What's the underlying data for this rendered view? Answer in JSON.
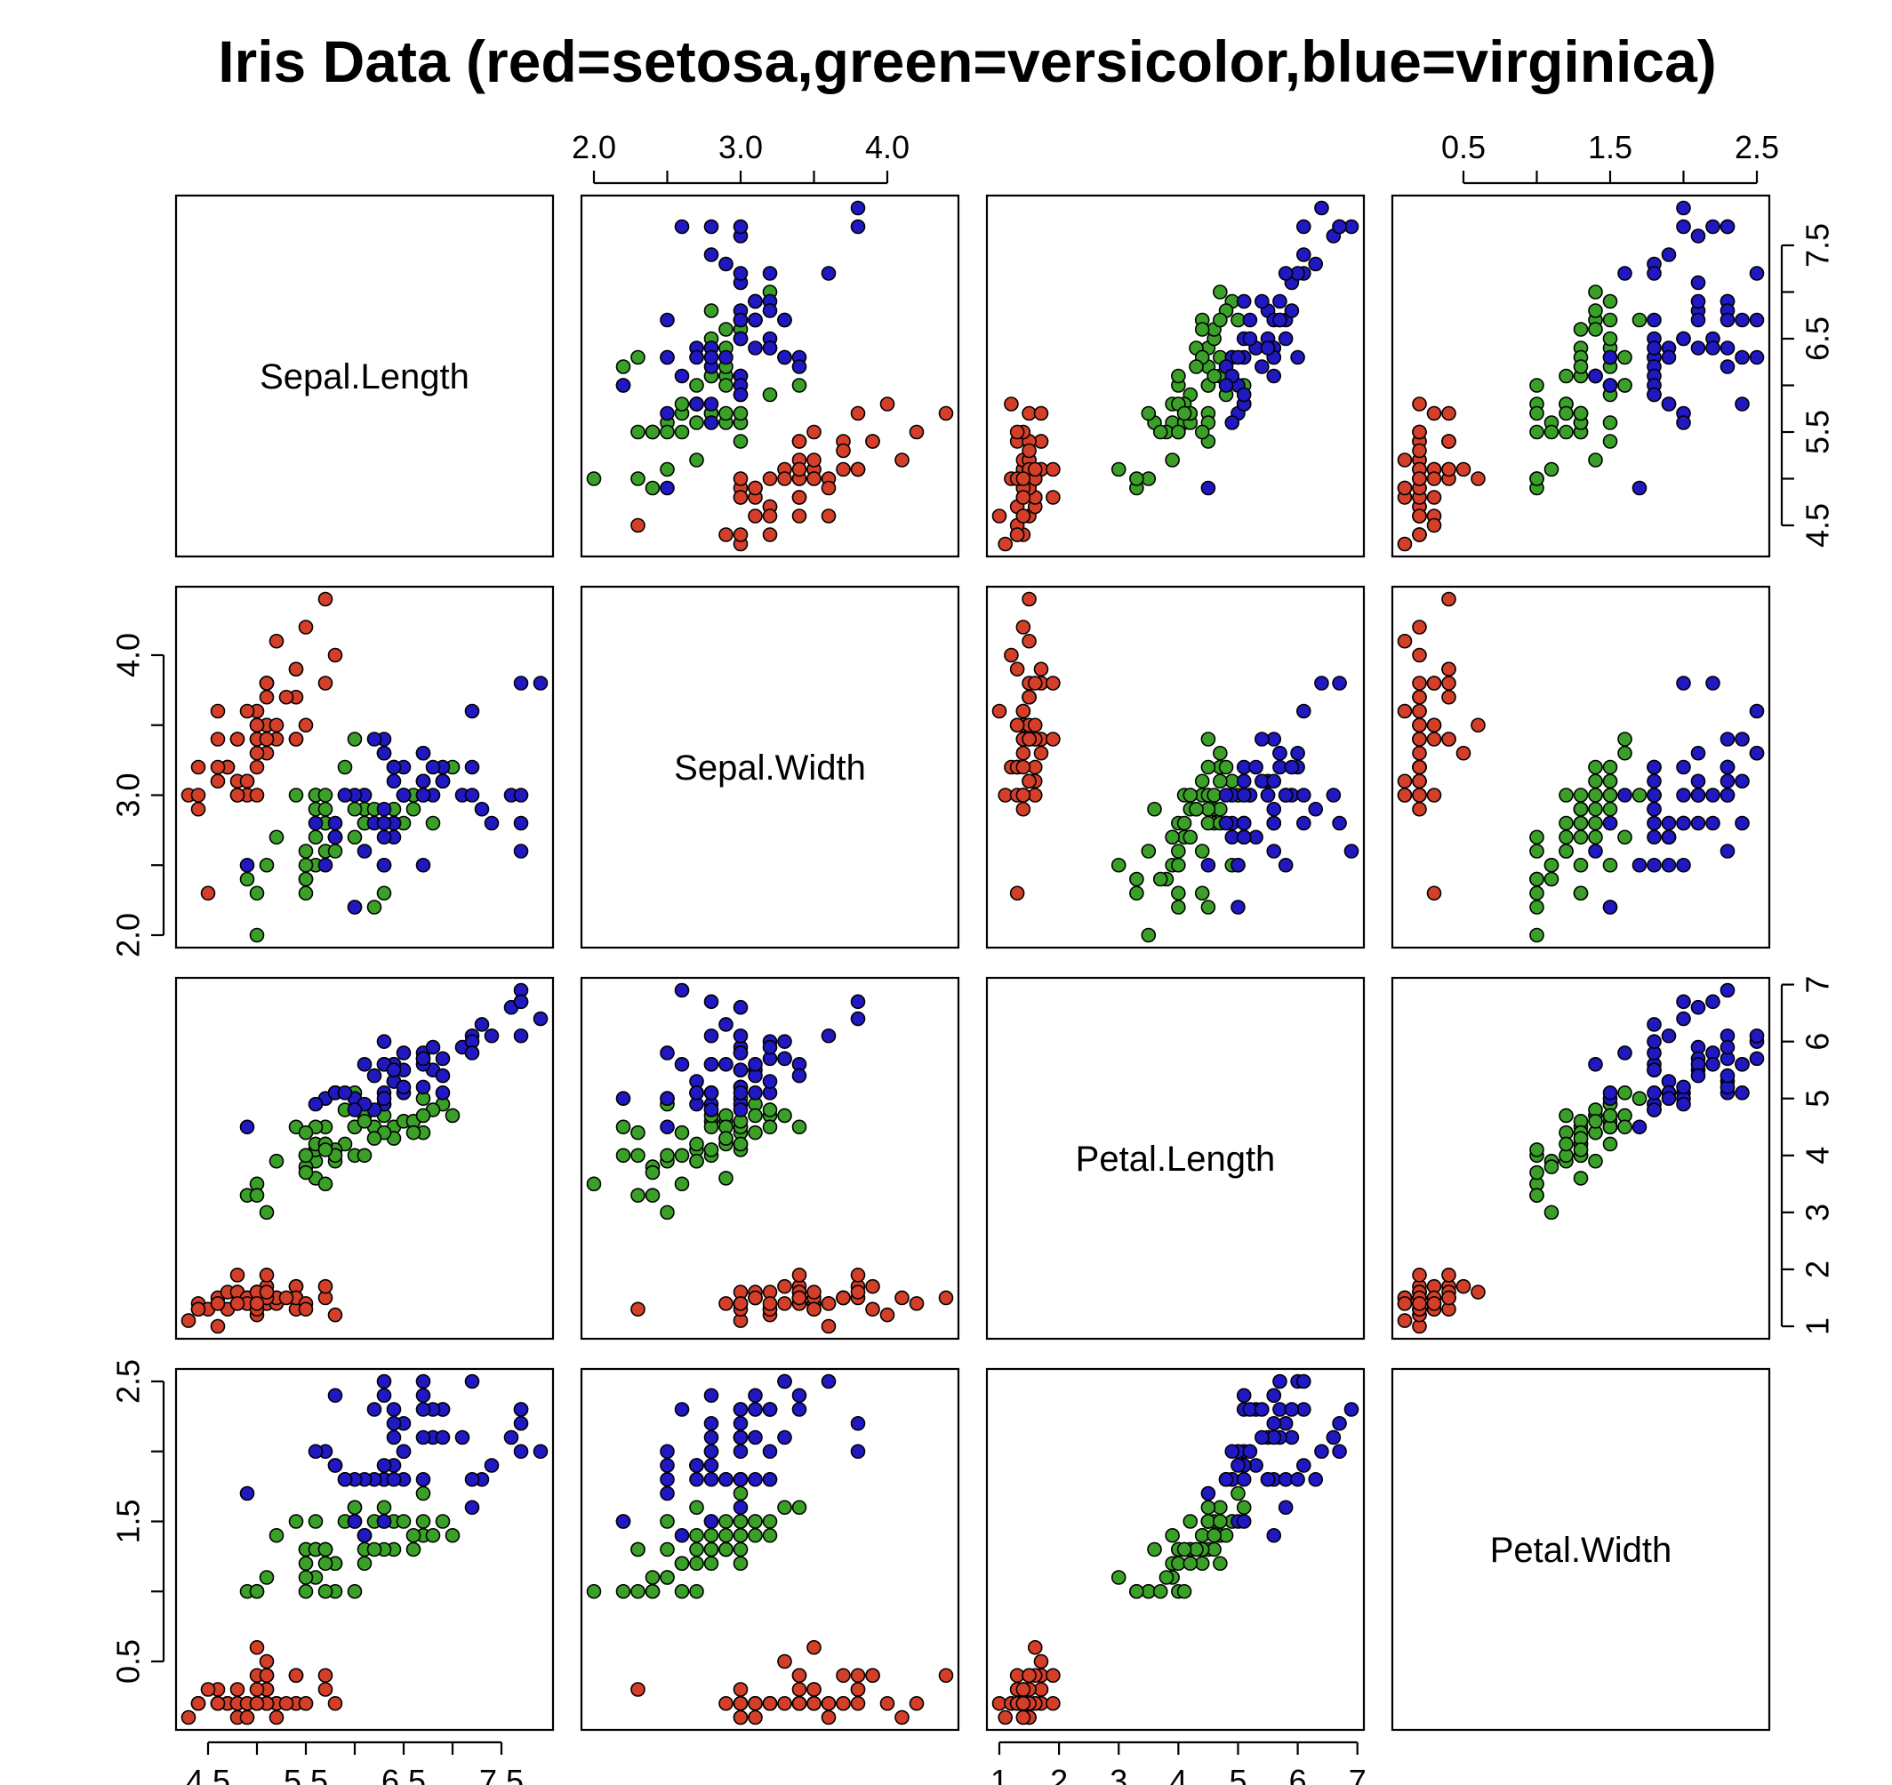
{
  "chart_data": {
    "type": "scatter",
    "title": "Iris Data (red=setosa,green=versicolor,blue=virginica)",
    "variables": [
      "Sepal.Length",
      "Sepal.Width",
      "Petal.Length",
      "Petal.Width"
    ],
    "ranges": [
      [
        4.3,
        7.9
      ],
      [
        2.0,
        4.4
      ],
      [
        1.0,
        6.9
      ],
      [
        0.1,
        2.5
      ]
    ],
    "ticks": [
      [
        4.5,
        5.0,
        5.5,
        6.0,
        6.5,
        7.0,
        7.5
      ],
      [
        2.0,
        2.5,
        3.0,
        3.5,
        4.0
      ],
      [
        1,
        2,
        3,
        4,
        5,
        6,
        7
      ],
      [
        0.5,
        1.0,
        1.5,
        2.0,
        2.5
      ]
    ],
    "tick_labels": [
      [
        "4.5",
        "",
        "5.5",
        "",
        "6.5",
        "",
        "7.5"
      ],
      [
        "2.0",
        "",
        "3.0",
        "",
        "4.0"
      ],
      [
        "1",
        "2",
        "3",
        "4",
        "5",
        "6",
        "7"
      ],
      [
        "0.5",
        "",
        "1.5",
        "",
        "2.5"
      ]
    ],
    "series_colors": {
      "setosa": "#d43f2a",
      "versicolor": "#3aa028",
      "virginica": "#2018c0"
    },
    "series": [
      {
        "key": "setosa",
        "points": [
          [
            5.1,
            3.5,
            1.4,
            0.2
          ],
          [
            4.9,
            3.0,
            1.4,
            0.2
          ],
          [
            4.7,
            3.2,
            1.3,
            0.2
          ],
          [
            4.6,
            3.1,
            1.5,
            0.2
          ],
          [
            5.0,
            3.6,
            1.4,
            0.2
          ],
          [
            5.4,
            3.9,
            1.7,
            0.4
          ],
          [
            4.6,
            3.4,
            1.4,
            0.3
          ],
          [
            5.0,
            3.4,
            1.5,
            0.2
          ],
          [
            4.4,
            2.9,
            1.4,
            0.2
          ],
          [
            4.9,
            3.1,
            1.5,
            0.1
          ],
          [
            5.4,
            3.7,
            1.5,
            0.2
          ],
          [
            4.8,
            3.4,
            1.6,
            0.2
          ],
          [
            4.8,
            3.0,
            1.4,
            0.1
          ],
          [
            4.3,
            3.0,
            1.1,
            0.1
          ],
          [
            5.8,
            4.0,
            1.2,
            0.2
          ],
          [
            5.7,
            4.4,
            1.5,
            0.4
          ],
          [
            5.4,
            3.9,
            1.3,
            0.4
          ],
          [
            5.1,
            3.5,
            1.4,
            0.3
          ],
          [
            5.7,
            3.8,
            1.7,
            0.3
          ],
          [
            5.1,
            3.8,
            1.5,
            0.3
          ],
          [
            5.4,
            3.4,
            1.7,
            0.2
          ],
          [
            5.1,
            3.7,
            1.5,
            0.4
          ],
          [
            4.6,
            3.6,
            1.0,
            0.2
          ],
          [
            5.1,
            3.3,
            1.7,
            0.5
          ],
          [
            4.8,
            3.4,
            1.9,
            0.2
          ],
          [
            5.0,
            3.0,
            1.6,
            0.2
          ],
          [
            5.0,
            3.4,
            1.6,
            0.4
          ],
          [
            5.2,
            3.5,
            1.5,
            0.2
          ],
          [
            5.2,
            3.4,
            1.4,
            0.2
          ],
          [
            4.7,
            3.2,
            1.6,
            0.2
          ],
          [
            4.8,
            3.1,
            1.6,
            0.2
          ],
          [
            5.4,
            3.4,
            1.5,
            0.4
          ],
          [
            5.2,
            4.1,
            1.5,
            0.1
          ],
          [
            5.5,
            4.2,
            1.4,
            0.2
          ],
          [
            4.9,
            3.1,
            1.5,
            0.2
          ],
          [
            5.0,
            3.2,
            1.2,
            0.2
          ],
          [
            5.5,
            3.5,
            1.3,
            0.2
          ],
          [
            4.9,
            3.6,
            1.4,
            0.1
          ],
          [
            4.4,
            3.0,
            1.3,
            0.2
          ],
          [
            5.1,
            3.4,
            1.5,
            0.2
          ],
          [
            5.0,
            3.5,
            1.3,
            0.3
          ],
          [
            4.5,
            2.3,
            1.3,
            0.3
          ],
          [
            4.4,
            3.2,
            1.3,
            0.2
          ],
          [
            5.0,
            3.5,
            1.6,
            0.6
          ],
          [
            5.1,
            3.8,
            1.9,
            0.4
          ],
          [
            4.8,
            3.0,
            1.4,
            0.3
          ],
          [
            5.1,
            3.8,
            1.6,
            0.2
          ],
          [
            4.6,
            3.2,
            1.4,
            0.2
          ],
          [
            5.3,
            3.7,
            1.5,
            0.2
          ],
          [
            5.0,
            3.3,
            1.4,
            0.2
          ]
        ]
      },
      {
        "key": "versicolor",
        "points": [
          [
            7.0,
            3.2,
            4.7,
            1.4
          ],
          [
            6.4,
            3.2,
            4.5,
            1.5
          ],
          [
            6.9,
            3.1,
            4.9,
            1.5
          ],
          [
            5.5,
            2.3,
            4.0,
            1.3
          ],
          [
            6.5,
            2.8,
            4.6,
            1.5
          ],
          [
            5.7,
            2.8,
            4.5,
            1.3
          ],
          [
            6.3,
            3.3,
            4.7,
            1.6
          ],
          [
            4.9,
            2.4,
            3.3,
            1.0
          ],
          [
            6.6,
            2.9,
            4.6,
            1.3
          ],
          [
            5.2,
            2.7,
            3.9,
            1.4
          ],
          [
            5.0,
            2.0,
            3.5,
            1.0
          ],
          [
            5.9,
            3.0,
            4.2,
            1.5
          ],
          [
            6.0,
            2.2,
            4.0,
            1.0
          ],
          [
            6.1,
            2.9,
            4.7,
            1.4
          ],
          [
            5.6,
            2.9,
            3.6,
            1.3
          ],
          [
            6.7,
            3.1,
            4.4,
            1.4
          ],
          [
            5.6,
            3.0,
            4.5,
            1.5
          ],
          [
            5.8,
            2.7,
            4.1,
            1.0
          ],
          [
            6.2,
            2.2,
            4.5,
            1.5
          ],
          [
            5.6,
            2.5,
            3.9,
            1.1
          ],
          [
            5.9,
            3.2,
            4.8,
            1.8
          ],
          [
            6.1,
            2.8,
            4.0,
            1.3
          ],
          [
            6.3,
            2.5,
            4.9,
            1.5
          ],
          [
            6.1,
            2.8,
            4.7,
            1.2
          ],
          [
            6.4,
            2.9,
            4.3,
            1.3
          ],
          [
            6.6,
            3.0,
            4.4,
            1.4
          ],
          [
            6.8,
            2.8,
            4.8,
            1.4
          ],
          [
            6.7,
            3.0,
            5.0,
            1.7
          ],
          [
            6.0,
            2.9,
            4.5,
            1.5
          ],
          [
            5.7,
            2.6,
            3.5,
            1.0
          ],
          [
            5.5,
            2.4,
            3.8,
            1.1
          ],
          [
            5.5,
            2.4,
            3.7,
            1.0
          ],
          [
            5.8,
            2.7,
            3.9,
            1.2
          ],
          [
            6.0,
            2.7,
            5.1,
            1.6
          ],
          [
            5.4,
            3.0,
            4.5,
            1.5
          ],
          [
            6.0,
            3.4,
            4.5,
            1.6
          ],
          [
            6.7,
            3.1,
            4.7,
            1.5
          ],
          [
            6.3,
            2.3,
            4.4,
            1.3
          ],
          [
            5.6,
            3.0,
            4.1,
            1.3
          ],
          [
            5.5,
            2.5,
            4.0,
            1.3
          ],
          [
            5.5,
            2.6,
            4.4,
            1.2
          ],
          [
            6.1,
            3.0,
            4.6,
            1.4
          ],
          [
            5.8,
            2.6,
            4.0,
            1.2
          ],
          [
            5.0,
            2.3,
            3.3,
            1.0
          ],
          [
            5.6,
            2.7,
            4.2,
            1.3
          ],
          [
            5.7,
            3.0,
            4.2,
            1.2
          ],
          [
            5.7,
            2.9,
            4.2,
            1.3
          ],
          [
            6.2,
            2.9,
            4.3,
            1.3
          ],
          [
            5.1,
            2.5,
            3.0,
            1.1
          ],
          [
            5.7,
            2.8,
            4.1,
            1.3
          ]
        ]
      },
      {
        "key": "virginica",
        "points": [
          [
            6.3,
            3.3,
            6.0,
            2.5
          ],
          [
            5.8,
            2.7,
            5.1,
            1.9
          ],
          [
            7.1,
            3.0,
            5.9,
            2.1
          ],
          [
            6.3,
            2.9,
            5.6,
            1.8
          ],
          [
            6.5,
            3.0,
            5.8,
            2.2
          ],
          [
            7.6,
            3.0,
            6.6,
            2.1
          ],
          [
            4.9,
            2.5,
            4.5,
            1.7
          ],
          [
            7.3,
            2.9,
            6.3,
            1.8
          ],
          [
            6.7,
            2.5,
            5.8,
            1.8
          ],
          [
            7.2,
            3.6,
            6.1,
            2.5
          ],
          [
            6.5,
            3.2,
            5.1,
            2.0
          ],
          [
            6.4,
            2.7,
            5.3,
            1.9
          ],
          [
            6.8,
            3.0,
            5.5,
            2.1
          ],
          [
            5.7,
            2.5,
            5.0,
            2.0
          ],
          [
            5.8,
            2.8,
            5.1,
            2.4
          ],
          [
            6.4,
            3.2,
            5.3,
            2.3
          ],
          [
            6.5,
            3.0,
            5.5,
            1.8
          ],
          [
            7.7,
            3.8,
            6.7,
            2.2
          ],
          [
            7.7,
            2.6,
            6.9,
            2.3
          ],
          [
            6.0,
            2.2,
            5.0,
            1.5
          ],
          [
            6.9,
            3.2,
            5.7,
            2.3
          ],
          [
            5.6,
            2.8,
            4.9,
            2.0
          ],
          [
            7.7,
            2.8,
            6.7,
            2.0
          ],
          [
            6.3,
            2.7,
            4.9,
            1.8
          ],
          [
            6.7,
            3.3,
            5.7,
            2.1
          ],
          [
            7.2,
            3.2,
            6.0,
            1.8
          ],
          [
            6.2,
            2.8,
            4.8,
            1.8
          ],
          [
            6.1,
            3.0,
            4.9,
            1.8
          ],
          [
            6.4,
            2.8,
            5.6,
            2.1
          ],
          [
            7.2,
            3.0,
            5.8,
            1.6
          ],
          [
            7.4,
            2.8,
            6.1,
            1.9
          ],
          [
            7.9,
            3.8,
            6.4,
            2.0
          ],
          [
            6.4,
            2.8,
            5.6,
            2.2
          ],
          [
            6.3,
            2.8,
            5.1,
            1.5
          ],
          [
            6.1,
            2.6,
            5.6,
            1.4
          ],
          [
            7.7,
            3.0,
            6.1,
            2.3
          ],
          [
            6.3,
            3.4,
            5.6,
            2.4
          ],
          [
            6.4,
            3.1,
            5.5,
            1.8
          ],
          [
            6.0,
            3.0,
            4.8,
            1.8
          ],
          [
            6.9,
            3.1,
            5.4,
            2.1
          ],
          [
            6.7,
            3.1,
            5.6,
            2.4
          ],
          [
            6.9,
            3.1,
            5.1,
            2.3
          ],
          [
            5.8,
            2.7,
            5.1,
            1.9
          ],
          [
            6.8,
            3.2,
            5.9,
            2.3
          ],
          [
            6.7,
            3.3,
            5.7,
            2.5
          ],
          [
            6.7,
            3.0,
            5.2,
            2.3
          ],
          [
            6.3,
            2.5,
            5.0,
            1.9
          ],
          [
            6.5,
            3.0,
            5.2,
            2.0
          ],
          [
            6.2,
            3.4,
            5.4,
            2.3
          ],
          [
            5.9,
            3.0,
            5.1,
            1.8
          ]
        ]
      }
    ]
  }
}
